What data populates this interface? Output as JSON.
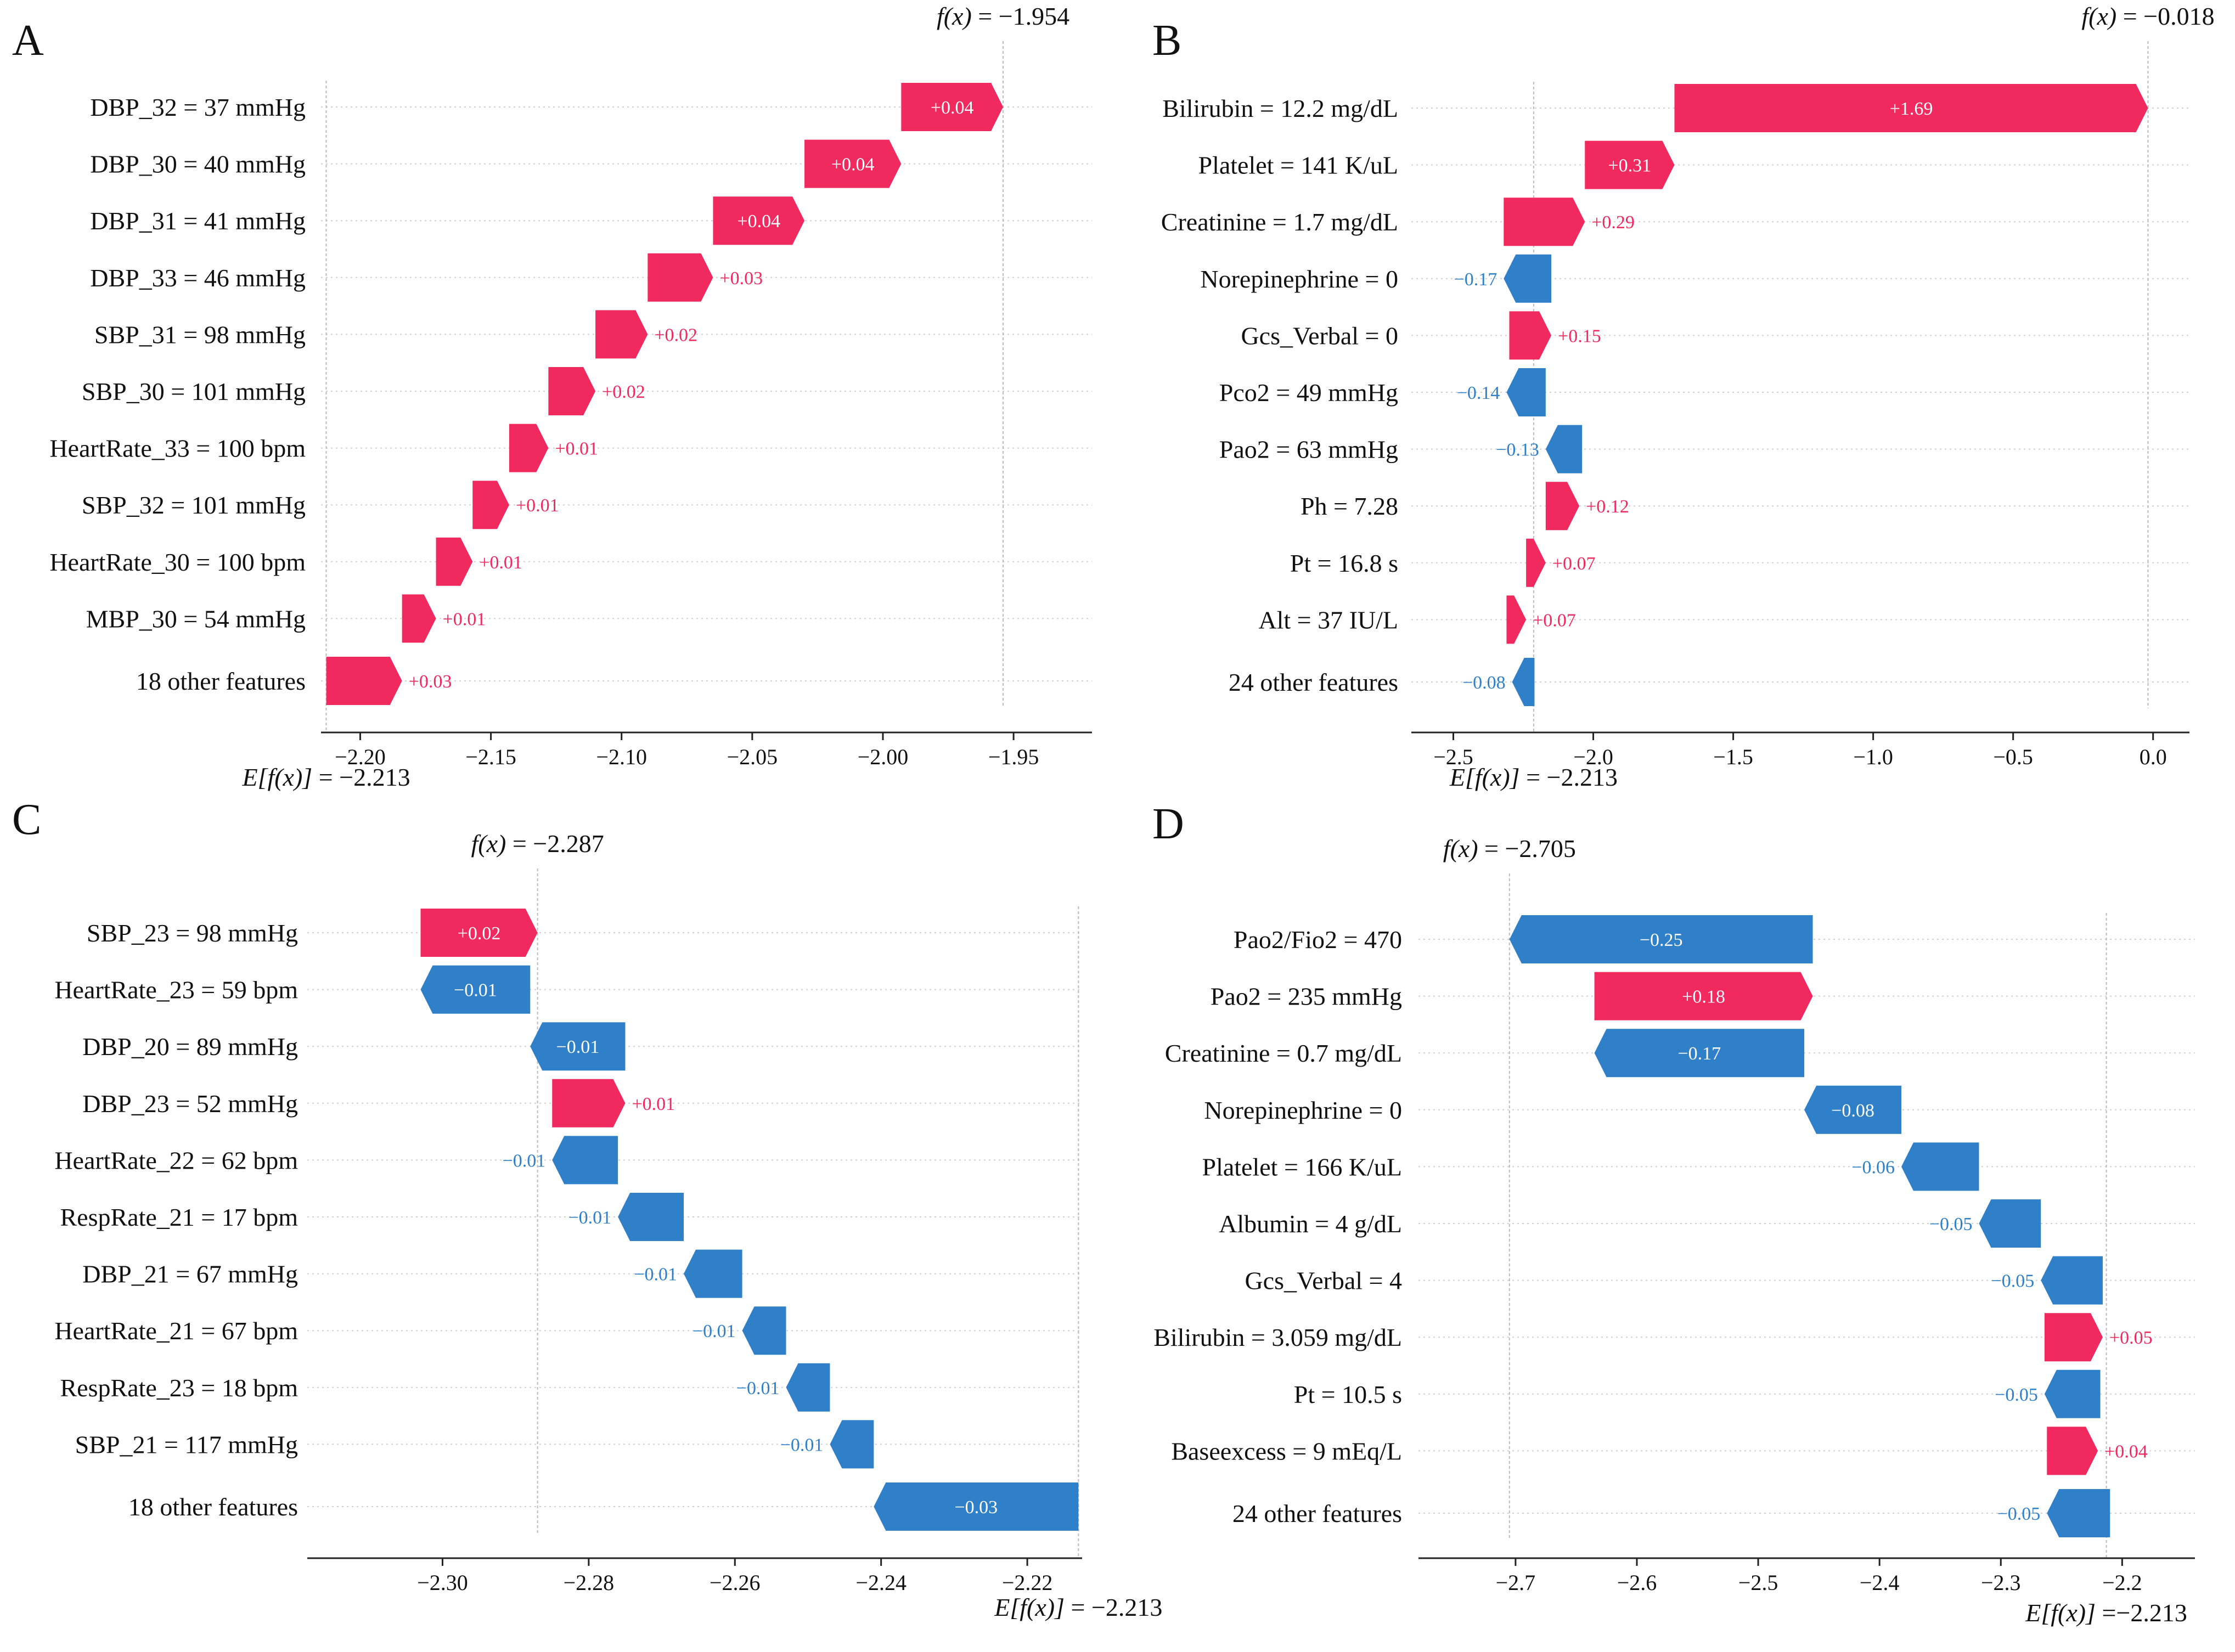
{
  "colors": {
    "positive": "#f0295e",
    "negative": "#2f80c8",
    "axis": "#222222",
    "grid": "#d0d0d0",
    "reference": "#bbbbbb"
  },
  "chart_data": [
    {
      "panel": "A",
      "type": "waterfall",
      "fx_label": "f(x)",
      "fx_text": "= −1.954",
      "fx": -1.954,
      "efx_label": "E[f(x)]",
      "efx_text": "= −2.213",
      "efx": -2.213,
      "xlim": [
        -2.215,
        -1.92
      ],
      "xticks": [
        -2.2,
        -2.15,
        -2.1,
        -2.05,
        -2.0,
        -1.95
      ],
      "xtick_labels": [
        "−2.20",
        "−2.15",
        "−2.10",
        "−2.05",
        "−2.00",
        "−1.95"
      ],
      "features": [
        {
          "label": "DBP_32 = 37 mmHg",
          "value": 0.04,
          "text": "+0.04",
          "start": -1.993,
          "end": -1.954
        },
        {
          "label": "DBP_30 = 40 mmHg",
          "value": 0.04,
          "text": "+0.04",
          "start": -2.03,
          "end": -1.993
        },
        {
          "label": "DBP_31 = 41 mmHg",
          "value": 0.04,
          "text": "+0.04",
          "start": -2.065,
          "end": -2.03
        },
        {
          "label": "DBP_33 = 46 mmHg",
          "value": 0.03,
          "text": "+0.03",
          "start": -2.09,
          "end": -2.065
        },
        {
          "label": "SBP_31 = 98 mmHg",
          "value": 0.02,
          "text": "+0.02",
          "start": -2.11,
          "end": -2.09
        },
        {
          "label": "SBP_30 = 101 mmHg",
          "value": 0.02,
          "text": "+0.02",
          "start": -2.128,
          "end": -2.11
        },
        {
          "label": "HeartRate_33 = 100 bpm",
          "value": 0.01,
          "text": "+0.01",
          "start": -2.143,
          "end": -2.128
        },
        {
          "label": "SBP_32 = 101 mmHg",
          "value": 0.01,
          "text": "+0.01",
          "start": -2.157,
          "end": -2.143
        },
        {
          "label": "HeartRate_30 = 100 bpm",
          "value": 0.01,
          "text": "+0.01",
          "start": -2.171,
          "end": -2.157
        },
        {
          "label": "MBP_30 = 54 mmHg",
          "value": 0.01,
          "text": "+0.01",
          "start": -2.184,
          "end": -2.171
        },
        {
          "label": "18 other features",
          "value": 0.03,
          "text": "+0.03",
          "start": -2.213,
          "end": -2.184
        }
      ]
    },
    {
      "panel": "B",
      "type": "waterfall",
      "fx_label": "f(x)",
      "fx_text": "= −0.018",
      "fx": -0.018,
      "efx_label": "E[f(x)]",
      "efx_text": "= −2.213",
      "efx": -2.213,
      "xlim": [
        -2.65,
        0.13
      ],
      "xticks": [
        -2.5,
        -2.0,
        -1.5,
        -1.0,
        -0.5,
        0.0
      ],
      "xtick_labels": [
        "−2.5",
        "−2.0",
        "−1.5",
        "−1.0",
        "−0.5",
        "0.0"
      ],
      "features": [
        {
          "label": "Bilirubin = 12.2 mg/dL",
          "value": 1.69,
          "text": "+1.69",
          "start": -1.71,
          "end": -0.018
        },
        {
          "label": "Platelet = 141 K/uL",
          "value": 0.31,
          "text": "+0.31",
          "start": -2.03,
          "end": -1.71
        },
        {
          "label": "Creatinine = 1.7 mg/dL",
          "value": 0.29,
          "text": "+0.29",
          "start": -2.32,
          "end": -2.03
        },
        {
          "label": "Norepinephrine = 0",
          "value": -0.17,
          "text": "−0.17",
          "start": -2.15,
          "end": -2.32
        },
        {
          "label": "Gcs_Verbal = 0",
          "value": 0.15,
          "text": "+0.15",
          "start": -2.3,
          "end": -2.15
        },
        {
          "label": "Pco2 = 49 mmHg",
          "value": -0.14,
          "text": "−0.14",
          "start": -2.17,
          "end": -2.31
        },
        {
          "label": "Pao2 = 63 mmHg",
          "value": -0.13,
          "text": "−0.13",
          "start": -2.04,
          "end": -2.17
        },
        {
          "label": "Ph = 7.28",
          "value": 0.12,
          "text": "+0.12",
          "start": -2.17,
          "end": -2.05
        },
        {
          "label": "Pt = 16.8 s",
          "value": 0.07,
          "text": "+0.07",
          "start": -2.24,
          "end": -2.17
        },
        {
          "label": "Alt = 37 IU/L",
          "value": 0.07,
          "text": "+0.07",
          "start": -2.31,
          "end": -2.24
        },
        {
          "label": "24 other features",
          "value": -0.08,
          "text": "−0.08",
          "start": -2.21,
          "end": -2.29
        }
      ]
    },
    {
      "panel": "C",
      "type": "waterfall",
      "fx_label": "f(x)",
      "fx_text": "= −2.287",
      "fx": -2.287,
      "efx_label": "E[f(x)]",
      "efx_text": "= −2.213",
      "efx": -2.213,
      "xlim": [
        -2.3185,
        -2.2125
      ],
      "xticks": [
        -2.3,
        -2.28,
        -2.26,
        -2.24,
        -2.22
      ],
      "xtick_labels": [
        "−2.30",
        "−2.28",
        "−2.26",
        "−2.24",
        "−2.22"
      ],
      "features": [
        {
          "label": "SBP_23 = 98 mmHg",
          "value": 0.02,
          "text": "+0.02",
          "start": -2.303,
          "end": -2.287
        },
        {
          "label": "HeartRate_23 = 59 bpm",
          "value": -0.01,
          "text": "−0.01",
          "start": -2.288,
          "end": -2.303
        },
        {
          "label": "DBP_20 = 89 mmHg",
          "value": -0.01,
          "text": "−0.01",
          "start": -2.275,
          "end": -2.288
        },
        {
          "label": "DBP_23 = 52 mmHg",
          "value": 0.01,
          "text": "+0.01",
          "start": -2.285,
          "end": -2.275
        },
        {
          "label": "HeartRate_22 = 62 bpm",
          "value": -0.01,
          "text": "−0.01",
          "start": -2.276,
          "end": -2.285
        },
        {
          "label": "RespRate_21 = 17 bpm",
          "value": -0.01,
          "text": "−0.01",
          "start": -2.267,
          "end": -2.276
        },
        {
          "label": "DBP_21 = 67 mmHg",
          "value": -0.01,
          "text": "−0.01",
          "start": -2.259,
          "end": -2.267
        },
        {
          "label": "HeartRate_21 = 67 bpm",
          "value": -0.01,
          "text": "−0.01",
          "start": -2.253,
          "end": -2.259
        },
        {
          "label": "RespRate_23 = 18 bpm",
          "value": -0.01,
          "text": "−0.01",
          "start": -2.247,
          "end": -2.253
        },
        {
          "label": "SBP_21 = 117 mmHg",
          "value": -0.01,
          "text": "−0.01",
          "start": -2.241,
          "end": -2.247
        },
        {
          "label": "18 other features",
          "value": -0.03,
          "text": "−0.03",
          "start": -2.213,
          "end": -2.241
        }
      ]
    },
    {
      "panel": "D",
      "type": "waterfall",
      "fx_label": "f(x)",
      "fx_text": "= −2.705",
      "fx": -2.705,
      "efx_label": "E[f(x)]",
      "efx_text": "=−2.213",
      "efx": -2.213,
      "xlim": [
        -2.78,
        -2.14
      ],
      "xticks": [
        -2.7,
        -2.6,
        -2.5,
        -2.4,
        -2.3,
        -2.2
      ],
      "xtick_labels": [
        "−2.7",
        "−2.6",
        "−2.5",
        "−2.4",
        "−2.3",
        "−2.2"
      ],
      "features": [
        {
          "label": "Pao2/Fio2 = 470",
          "value": -0.25,
          "text": "−0.25",
          "start": -2.455,
          "end": -2.705
        },
        {
          "label": "Pao2 = 235 mmHg",
          "value": 0.18,
          "text": "+0.18",
          "start": -2.635,
          "end": -2.455
        },
        {
          "label": "Creatinine = 0.7 mg/dL",
          "value": -0.17,
          "text": "−0.17",
          "start": -2.462,
          "end": -2.635
        },
        {
          "label": "Norepinephrine = 0",
          "value": -0.08,
          "text": "−0.08",
          "start": -2.382,
          "end": -2.462
        },
        {
          "label": "Platelet = 166 K/uL",
          "value": -0.06,
          "text": "−0.06",
          "start": -2.318,
          "end": -2.382
        },
        {
          "label": "Albumin = 4 g/dL",
          "value": -0.05,
          "text": "−0.05",
          "start": -2.267,
          "end": -2.318
        },
        {
          "label": "Gcs_Verbal = 4",
          "value": -0.05,
          "text": "−0.05",
          "start": -2.216,
          "end": -2.267
        },
        {
          "label": "Bilirubin = 3.059 mg/dL",
          "value": 0.05,
          "text": "+0.05",
          "start": -2.264,
          "end": -2.216
        },
        {
          "label": "Pt = 10.5 s",
          "value": -0.05,
          "text": "−0.05",
          "start": -2.218,
          "end": -2.264
        },
        {
          "label": "Baseexcess = 9 mEq/L",
          "value": 0.04,
          "text": "+0.04",
          "start": -2.262,
          "end": -2.22
        },
        {
          "label": "24 other features",
          "value": -0.05,
          "text": "−0.05",
          "start": -2.21,
          "end": -2.262
        }
      ]
    }
  ]
}
